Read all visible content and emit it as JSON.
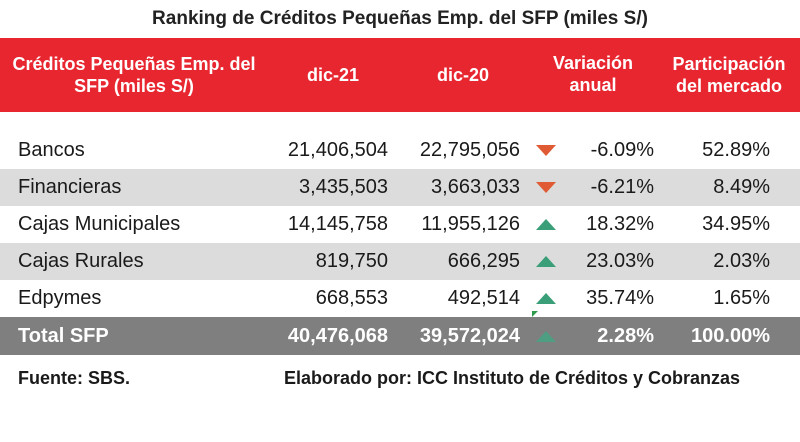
{
  "title": "Ranking de Créditos Pequeñas Emp. del SFP (miles S/)",
  "header": {
    "col0": "Créditos Pequeñas Emp. del SFP (miles S/)",
    "col1": "dic-21",
    "col2": "dic-20",
    "col3": "Variación anual",
    "col4": "Participación del mercado"
  },
  "colors": {
    "header_bg": "#e8262f",
    "shaded_row": "#dcdcdc",
    "total_row": "#7f7f7f",
    "down": "#e05a33",
    "up": "#3a9f78"
  },
  "rows": [
    {
      "name": "Bancos",
      "dic21": "21,406,504",
      "dic20": "22,795,056",
      "trend": "down-triangle-icon",
      "var": "-6.09%",
      "part": "52.89%"
    },
    {
      "name": "Financieras",
      "dic21": "3,435,503",
      "dic20": "3,663,033",
      "trend": "down-triangle-icon",
      "var": "-6.21%",
      "part": "8.49%"
    },
    {
      "name": "Cajas Municipales",
      "dic21": "14,145,758",
      "dic20": "11,955,126",
      "trend": "up-triangle-icon",
      "var": "18.32%",
      "part": "34.95%"
    },
    {
      "name": "Cajas Rurales",
      "dic21": "819,750",
      "dic20": "666,295",
      "trend": "up-triangle-icon",
      "var": "23.03%",
      "part": "2.03%"
    },
    {
      "name": "Edpymes",
      "dic21": "668,553",
      "dic20": "492,514",
      "trend": "up-triangle-icon",
      "var": "35.74%",
      "part": "1.65%"
    }
  ],
  "total": {
    "name": "Total SFP",
    "dic21": "40,476,068",
    "dic20": "39,572,024",
    "trend": "up-triangle-icon",
    "var": "2.28%",
    "part": "100.00%"
  },
  "footer": {
    "source": "Fuente: SBS.",
    "credit": "Elaborado por: ICC Instituto de Créditos y Cobranzas"
  }
}
